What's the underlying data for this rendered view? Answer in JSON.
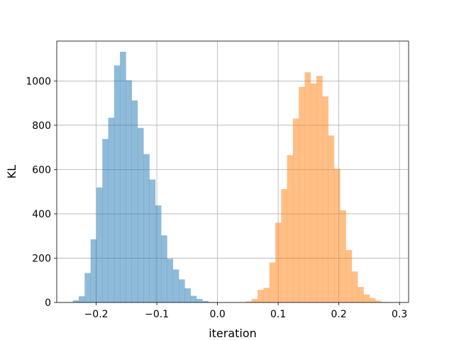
{
  "chart_data": {
    "type": "bar",
    "subtype": "histogram",
    "title": "",
    "xlabel": "iteration",
    "ylabel": "KL",
    "xlim": [
      -0.265,
      0.315
    ],
    "ylim": [
      0,
      1180
    ],
    "grid": true,
    "x_ticks": [
      {
        "value": -0.2,
        "label": "−0.2"
      },
      {
        "value": -0.1,
        "label": "−0.1"
      },
      {
        "value": 0.0,
        "label": "0.0"
      },
      {
        "value": 0.1,
        "label": "0.1"
      },
      {
        "value": 0.2,
        "label": "0.2"
      },
      {
        "value": 0.3,
        "label": "0.3"
      }
    ],
    "y_ticks": [
      {
        "value": 0,
        "label": "0"
      },
      {
        "value": 200,
        "label": "200"
      },
      {
        "value": 400,
        "label": "400"
      },
      {
        "value": 600,
        "label": "600"
      },
      {
        "value": 800,
        "label": "800"
      },
      {
        "value": 1000,
        "label": "1000"
      }
    ],
    "series": [
      {
        "color": "#1f77b4",
        "opacity": 0.5,
        "bin_width": 0.0097,
        "bins": [
          [
            -0.2384,
            10
          ],
          [
            -0.2287,
            28
          ],
          [
            -0.219,
            133
          ],
          [
            -0.2093,
            285
          ],
          [
            -0.1996,
            519
          ],
          [
            -0.1899,
            738
          ],
          [
            -0.1802,
            834
          ],
          [
            -0.1705,
            1070
          ],
          [
            -0.1608,
            1132
          ],
          [
            -0.1511,
            1003
          ],
          [
            -0.1414,
            912
          ],
          [
            -0.1317,
            788
          ],
          [
            -0.122,
            670
          ],
          [
            -0.1123,
            555
          ],
          [
            -0.1026,
            438
          ],
          [
            -0.0929,
            303
          ],
          [
            -0.0832,
            197
          ],
          [
            -0.0735,
            149
          ],
          [
            -0.0638,
            104
          ],
          [
            -0.0541,
            64
          ],
          [
            -0.0444,
            30
          ],
          [
            -0.0347,
            16
          ],
          [
            -0.025,
            7
          ],
          [
            -0.0153,
            2
          ],
          [
            -0.0056,
            1
          ]
        ]
      },
      {
        "color": "#ff7f0e",
        "opacity": 0.5,
        "bin_width": 0.0097,
        "bins": [
          [
            0.037,
            1
          ],
          [
            0.0467,
            5
          ],
          [
            0.0564,
            16
          ],
          [
            0.0661,
            57
          ],
          [
            0.0758,
            66
          ],
          [
            0.0855,
            180
          ],
          [
            0.0952,
            360
          ],
          [
            0.1049,
            512
          ],
          [
            0.1146,
            665
          ],
          [
            0.1243,
            830
          ],
          [
            0.134,
            973
          ],
          [
            0.1437,
            1039
          ],
          [
            0.1534,
            989
          ],
          [
            0.1631,
            1023
          ],
          [
            0.1728,
            930
          ],
          [
            0.1825,
            754
          ],
          [
            0.1922,
            604
          ],
          [
            0.2019,
            416
          ],
          [
            0.2116,
            237
          ],
          [
            0.2213,
            140
          ],
          [
            0.231,
            70
          ],
          [
            0.2407,
            36
          ],
          [
            0.2504,
            20
          ],
          [
            0.2601,
            8
          ],
          [
            0.2698,
            2
          ]
        ]
      }
    ]
  }
}
